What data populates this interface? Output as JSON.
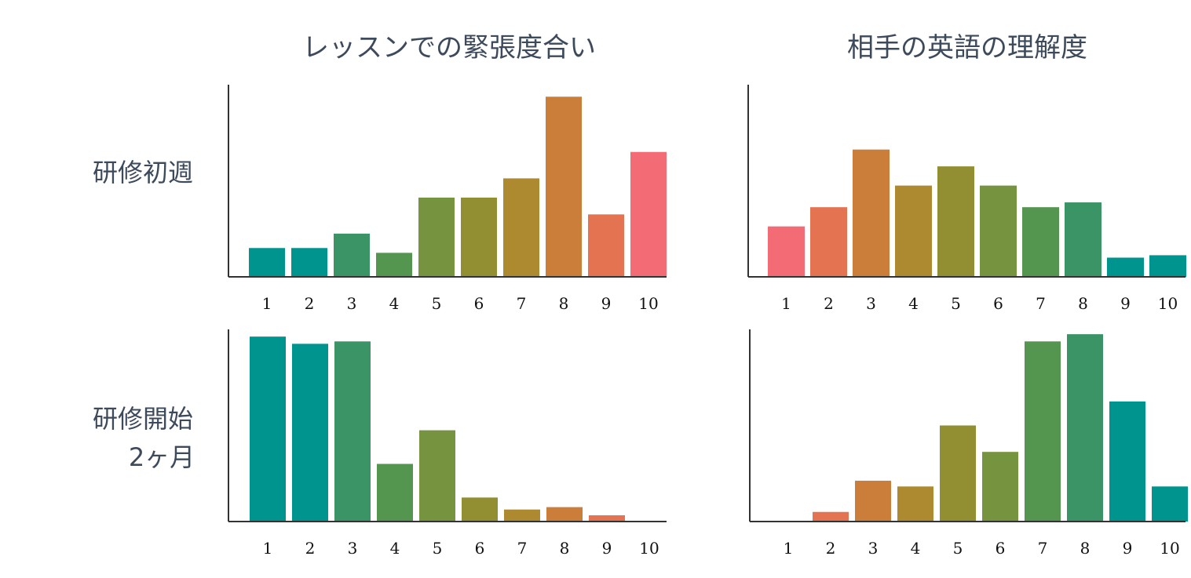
{
  "column_titles": [
    "レッスンでの緊張度合い",
    "相手の英語の理解度"
  ],
  "row_labels": [
    {
      "lines": [
        "研修初週"
      ]
    },
    {
      "lines": [
        "研修開始",
        "2ヶ月"
      ]
    }
  ],
  "colors": {
    "text": "#3d4a5c",
    "axis": "#333333",
    "palette": [
      "#00948f",
      "#00948f",
      "#3a9466",
      "#549550",
      "#76933f",
      "#928f33",
      "#ad8a30",
      "#cb7e3a",
      "#e47351",
      "#f26b75"
    ]
  },
  "chart_data": [
    {
      "type": "bar",
      "categories": [
        "1",
        "2",
        "3",
        "4",
        "5",
        "6",
        "7",
        "8",
        "9",
        "10"
      ],
      "values": [
        6,
        6,
        9,
        5,
        16.5,
        16.5,
        20.5,
        37.5,
        13,
        26
      ],
      "colors": [
        "#00948f",
        "#00948f",
        "#3a9466",
        "#549550",
        "#76933f",
        "#928f33",
        "#ad8a30",
        "#cb7e3a",
        "#e47351",
        "#f26b75"
      ],
      "ylim": [
        0,
        40
      ]
    },
    {
      "type": "bar",
      "categories": [
        "1",
        "2",
        "3",
        "4",
        "5",
        "6",
        "7",
        "8",
        "9",
        "10"
      ],
      "values": [
        10.5,
        14.5,
        26.5,
        19,
        23,
        19,
        14.5,
        15.5,
        4,
        4.5
      ],
      "colors": [
        "#f26b75",
        "#e47351",
        "#cb7e3a",
        "#ad8a30",
        "#928f33",
        "#76933f",
        "#549550",
        "#3a9466",
        "#00948f",
        "#00948f"
      ],
      "ylim": [
        0,
        40
      ]
    },
    {
      "type": "bar",
      "categories": [
        "1",
        "2",
        "3",
        "4",
        "5",
        "6",
        "7",
        "8",
        "9",
        "10"
      ],
      "values": [
        38.5,
        37,
        37.5,
        12,
        19,
        5,
        2.5,
        3,
        1.3,
        0
      ],
      "colors": [
        "#00948f",
        "#00948f",
        "#3a9466",
        "#549550",
        "#76933f",
        "#928f33",
        "#ad8a30",
        "#cb7e3a",
        "#e47351",
        "#f26b75"
      ],
      "ylim": [
        0,
        40
      ]
    },
    {
      "type": "bar",
      "categories": [
        "1",
        "2",
        "3",
        "4",
        "5",
        "6",
        "7",
        "8",
        "9",
        "10"
      ],
      "values": [
        0,
        2,
        8.5,
        7.3,
        20,
        14.5,
        37.5,
        39,
        25,
        7.3
      ],
      "colors": [
        "#f26b75",
        "#e47351",
        "#cb7e3a",
        "#ad8a30",
        "#928f33",
        "#76933f",
        "#549550",
        "#3a9466",
        "#00948f",
        "#00948f"
      ],
      "ylim": [
        0,
        40
      ]
    }
  ]
}
